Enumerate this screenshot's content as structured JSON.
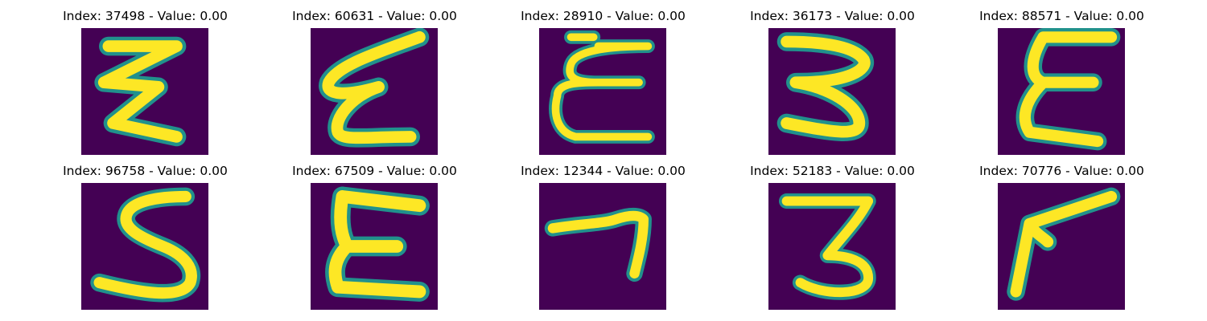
{
  "figure": {
    "colormap": "viridis",
    "background_color": "#440154",
    "stroke_color": "#fde725",
    "edge_color": "#21918c",
    "panels": [
      {
        "title": "Index: 37498 - Value: 0.00",
        "glyph": "3-like zigzag"
      },
      {
        "title": "Index: 60631 - Value: 0.00",
        "glyph": "3-like zigzag"
      },
      {
        "title": "Index: 28910 - Value: 0.00",
        "glyph": "E-like curve"
      },
      {
        "title": "Index: 36173 - Value: 0.00",
        "glyph": "3-like zigzag"
      },
      {
        "title": "Index: 88571 - Value: 0.00",
        "glyph": "E-like curve"
      },
      {
        "title": "Index: 96758 - Value: 0.00",
        "glyph": "5-like curve"
      },
      {
        "title": "Index: 67509 - Value: 0.00",
        "glyph": "E-like curve"
      },
      {
        "title": "Index: 12344 - Value: 0.00",
        "glyph": "7-like stroke"
      },
      {
        "title": "Index: 52183 - Value: 0.00",
        "glyph": "3-like curve"
      },
      {
        "title": "Index: 70776 - Value: 0.00",
        "glyph": "7-like stroke"
      }
    ]
  }
}
